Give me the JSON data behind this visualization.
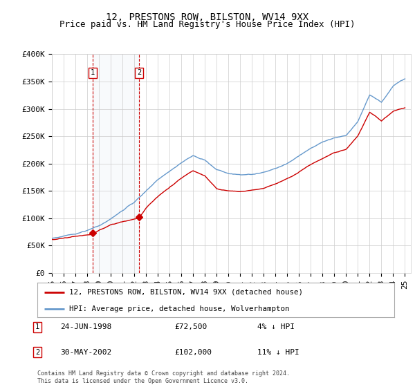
{
  "title": "12, PRESTONS ROW, BILSTON, WV14 9XX",
  "subtitle": "Price paid vs. HM Land Registry's House Price Index (HPI)",
  "ylim": [
    0,
    400000
  ],
  "xlim_start": 1995.0,
  "xlim_end": 2025.5,
  "yticks": [
    0,
    50000,
    100000,
    150000,
    200000,
    250000,
    300000,
    350000,
    400000
  ],
  "ytick_labels": [
    "£0",
    "£50K",
    "£100K",
    "£150K",
    "£200K",
    "£250K",
    "£300K",
    "£350K",
    "£400K"
  ],
  "xticks": [
    1995,
    1996,
    1997,
    1998,
    1999,
    2000,
    2001,
    2002,
    2003,
    2004,
    2005,
    2006,
    2007,
    2008,
    2009,
    2010,
    2011,
    2012,
    2013,
    2014,
    2015,
    2016,
    2017,
    2018,
    2019,
    2020,
    2021,
    2022,
    2023,
    2024,
    2025
  ],
  "sale1_x": 1998.48,
  "sale1_y": 72500,
  "sale1_label": "1",
  "sale1_date": "24-JUN-1998",
  "sale1_price": "£72,500",
  "sale1_hpi": "4% ↓ HPI",
  "sale2_x": 2002.41,
  "sale2_y": 102000,
  "sale2_label": "2",
  "sale2_date": "30-MAY-2002",
  "sale2_price": "£102,000",
  "sale2_hpi": "11% ↓ HPI",
  "red_line_color": "#cc0000",
  "blue_line_color": "#6699cc",
  "dashed_color": "#cc0000",
  "grid_color": "#cccccc",
  "background_color": "#ffffff",
  "legend_label_red": "12, PRESTONS ROW, BILSTON, WV14 9XX (detached house)",
  "legend_label_blue": "HPI: Average price, detached house, Wolverhampton",
  "footnote": "Contains HM Land Registry data © Crown copyright and database right 2024.\nThis data is licensed under the Open Government Licence v3.0.",
  "title_fontsize": 10,
  "subtitle_fontsize": 9,
  "tick_fontsize": 8,
  "shaded_color": "#dce6f1",
  "marker_color": "#cc0000"
}
